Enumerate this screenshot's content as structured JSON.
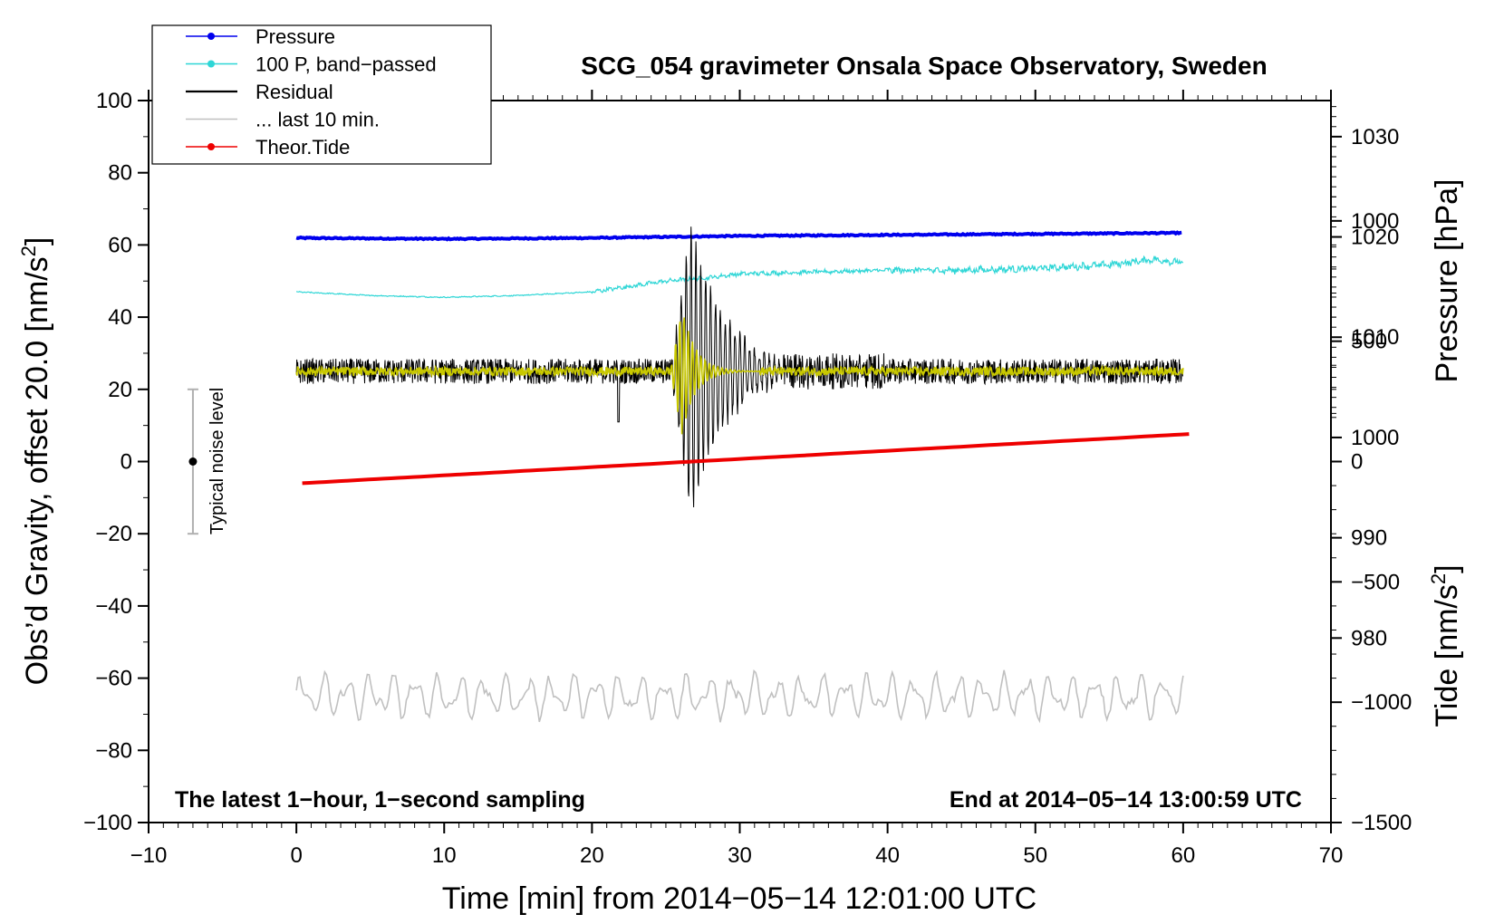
{
  "chart_data": {
    "type": "line",
    "title": "SCG_054 gravimeter Onsala Space Observatory, Sweden",
    "xlabel": "Time [min] from 2014−05−14 12:01:00 UTC",
    "ylabel_left_main": "Obs’d Gravity, offset 20.0 [nm/s",
    "ylabel_left_sup": "2",
    "ylabel_left_end": "]",
    "ylabel_right_pressure": "Pressure [hPa]",
    "ylabel_right_tide_main": "Tide [nm/s",
    "ylabel_right_tide_sup": "2",
    "ylabel_right_tide_end": "]",
    "xlim": [
      -10,
      70
    ],
    "ylim": [
      -100,
      100
    ],
    "pressure_lim": [
      961.6,
      1033.6
    ],
    "tide_lim": [
      -1500,
      1500
    ],
    "x_ticks": [
      -10,
      0,
      10,
      20,
      30,
      40,
      50,
      60,
      70
    ],
    "x_tick_labels": [
      "−10",
      "0",
      "10",
      "20",
      "30",
      "40",
      "50",
      "60",
      "70"
    ],
    "y_ticks": [
      -100,
      -80,
      -60,
      -40,
      -20,
      0,
      20,
      40,
      60,
      80,
      100
    ],
    "y_tick_labels": [
      "−100",
      "−80",
      "−60",
      "−40",
      "−20",
      "0",
      "20",
      "40",
      "60",
      "80",
      "100"
    ],
    "pressure_ticks": [
      980,
      990,
      1000,
      1010,
      1020,
      1030
    ],
    "pressure_tick_labels": [
      "980",
      "990",
      "1000",
      "1010",
      "1020",
      "1030"
    ],
    "tide_ticks": [
      -1500,
      -1000,
      -500,
      0,
      500,
      1000
    ],
    "tide_tick_labels": [
      "−1500",
      "−1000",
      "−500",
      "0",
      "500",
      "1000"
    ],
    "legend_position": "top-left",
    "legend": [
      {
        "label": "Pressure",
        "color": "#0000ee",
        "marker": true
      },
      {
        "label": "100 P, band−passed",
        "color": "#2ed6d6",
        "marker": true
      },
      {
        "label": "Residual",
        "color": "#000000",
        "marker": false
      },
      {
        "label": "... last 10 min.",
        "color": "#c0c0c0",
        "marker": false
      },
      {
        "label": "Theor.Tide",
        "color": "#ee0000",
        "marker": true
      }
    ],
    "note_left": "The latest 1−hour, 1−second sampling",
    "note_right": "End at 2014−05−14 13:00:59 UTC",
    "noise_label": "Typical noise level",
    "noise_bar": {
      "x": -7,
      "center": 0,
      "low": -20,
      "high": 20
    },
    "colors": {
      "pressure": "#0000ee",
      "bandpassed": "#2ed6d6",
      "residual": "#000000",
      "last10": "#c0c0c0",
      "tide": "#ee0000",
      "filtered": "#c8c800"
    },
    "series": [
      {
        "name": "Pressure",
        "y_axis": "pressure",
        "x": [
          0,
          10,
          20,
          30,
          40,
          50,
          60
        ],
        "values": [
          1019.9,
          1019.8,
          1019.9,
          1020.1,
          1020.2,
          1020.3,
          1020.4
        ]
      },
      {
        "name": "100 P, band−passed",
        "y_axis": "left",
        "x": [
          0,
          5,
          10,
          15,
          20,
          25,
          28,
          30,
          35,
          40,
          45,
          50,
          55,
          58,
          60
        ],
        "values": [
          47,
          46,
          45.5,
          46,
          47,
          50,
          51,
          52,
          52.5,
          53,
          53,
          53.5,
          54.5,
          56,
          55
        ]
      },
      {
        "name": "Residual",
        "y_axis": "left",
        "x_start": 0,
        "x_end": 60,
        "baseline": 25,
        "event_start": 25.3,
        "event_peak_max": 67,
        "event_peak_min": -18
      },
      {
        "name": "... last 10 min.",
        "y_axis": "left",
        "x_start": 0,
        "x_end": 60,
        "baseline": -65,
        "range": [
          -74,
          -56
        ]
      },
      {
        "name": "Theor.Tide",
        "y_axis": "tide",
        "x": [
          0.4,
          60.6
        ],
        "values": [
          -90,
          115
        ]
      }
    ]
  }
}
